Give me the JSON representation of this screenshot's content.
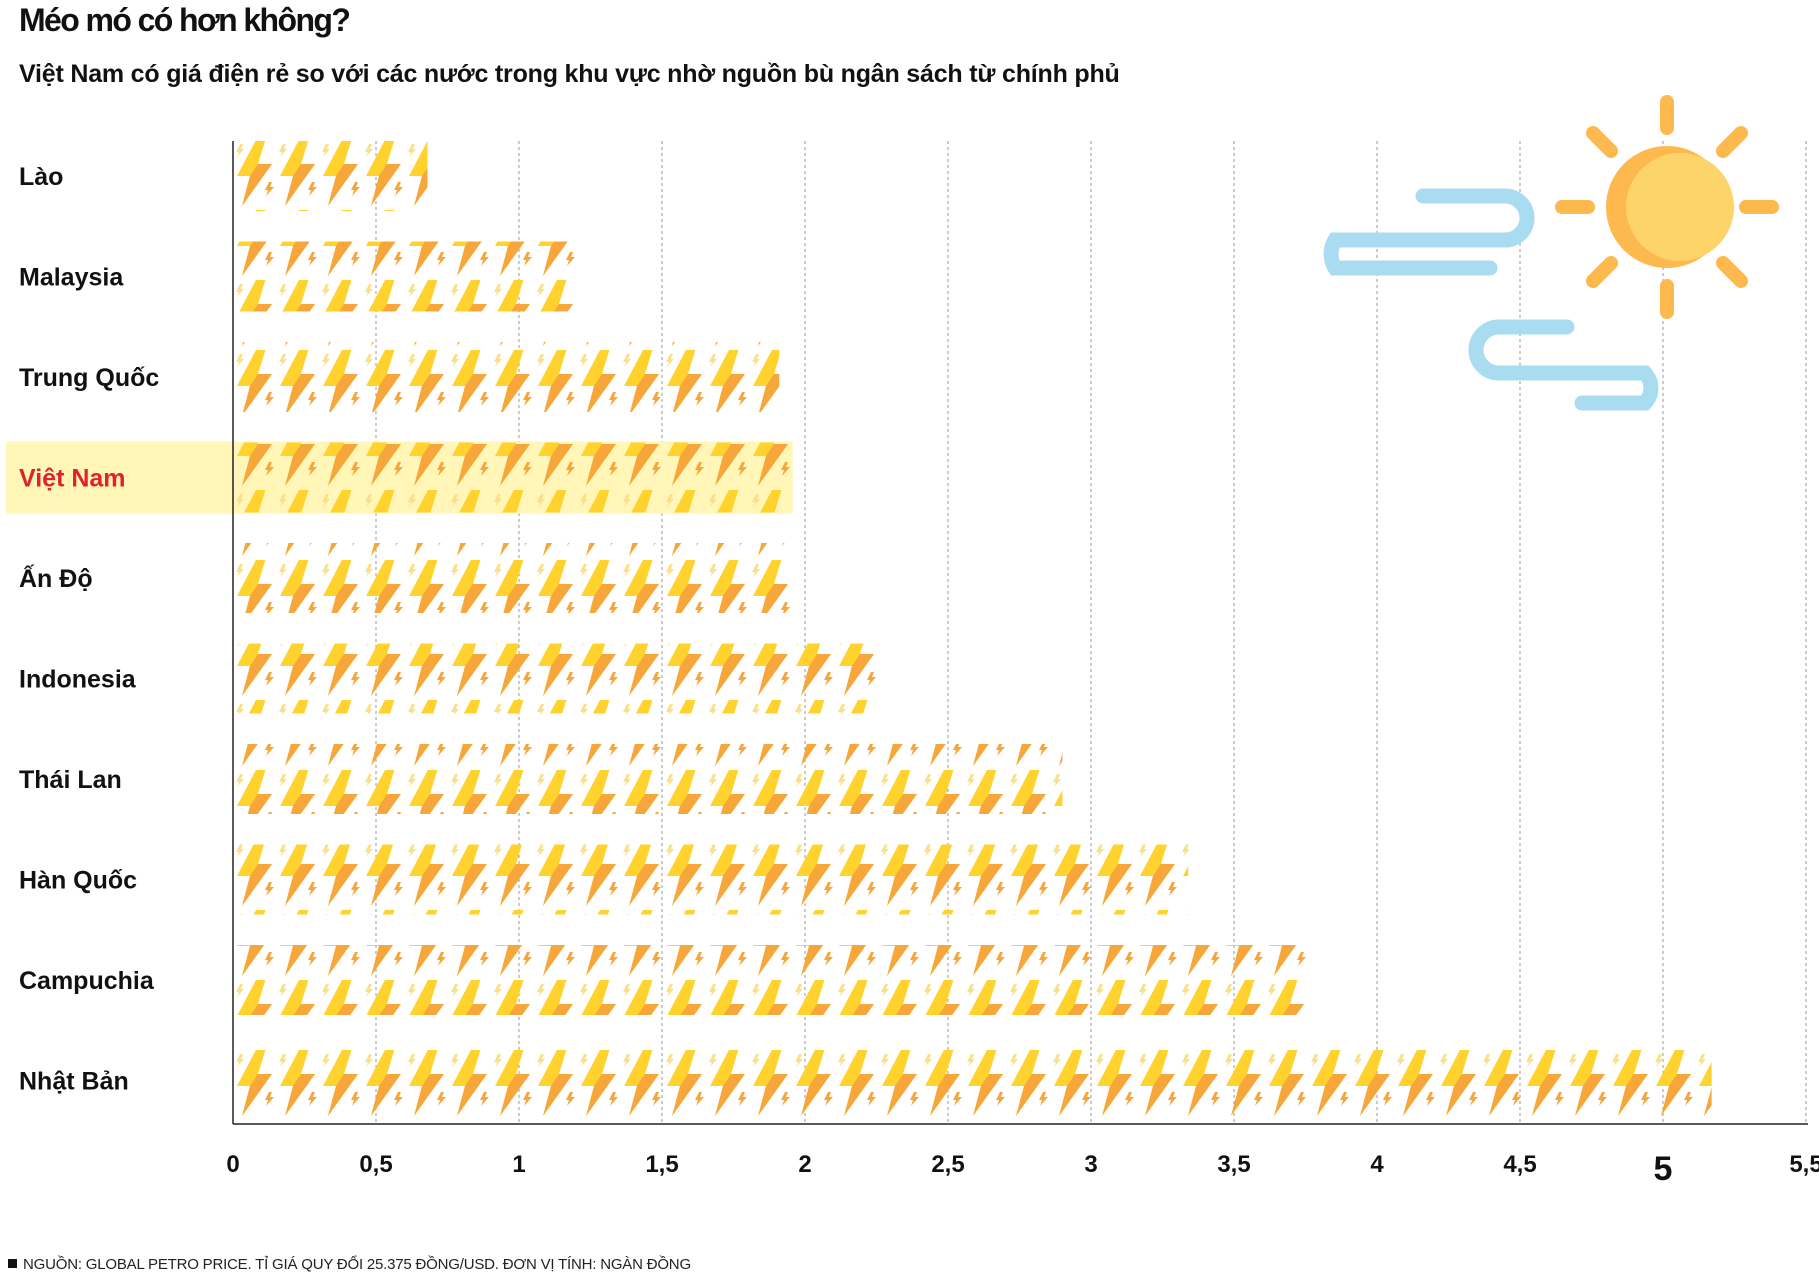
{
  "chart_data": {
    "type": "bar",
    "orientation": "horizontal",
    "title": "Méo mó có hơn không?",
    "subtitle": "Việt Nam có giá điện rẻ so với các nước trong khu vực nhờ nguồn bù ngân sách từ chính phủ",
    "categories": [
      "Lào",
      "Malaysia",
      "Trung Quốc",
      "Việt Nam",
      "Ấn Độ",
      "Indonesia",
      "Thái Lan",
      "Hàn Quốc",
      "Campuchia",
      "Nhật Bản"
    ],
    "values": [
      0.68,
      1.21,
      1.91,
      1.95,
      1.96,
      2.26,
      2.9,
      3.34,
      3.77,
      5.17
    ],
    "highlight": "Việt Nam",
    "xlim": [
      0,
      5.5
    ],
    "xticks": [
      "0",
      "0,5",
      "1",
      "1,5",
      "2",
      "2,5",
      "3",
      "3,5",
      "4",
      "4,5",
      "5",
      "5,5"
    ],
    "grid": "vertical-dashed",
    "xlabel": "",
    "ylabel": "",
    "source": "NGUỒN: GLOBAL PETRO PRICE. TỈ GIÁ QUY ĐỔI 25.375 ĐỒNG/USD. ĐƠN VỊ TÍNH: NGÀN ĐỒNG"
  },
  "colors": {
    "bolt_light": "#FFD22E",
    "bolt_dark": "#F6A63A",
    "bolt_pale": "#FBE08A",
    "highlight_bg": "#FFF6B8",
    "highlight_text": "#E0222B",
    "sun": "#FDB94E",
    "sun_inner": "#FDD46A",
    "cloud": "#A9DCF0"
  },
  "decoration": {
    "icons": [
      "sun-icon",
      "cloud-icon"
    ]
  }
}
